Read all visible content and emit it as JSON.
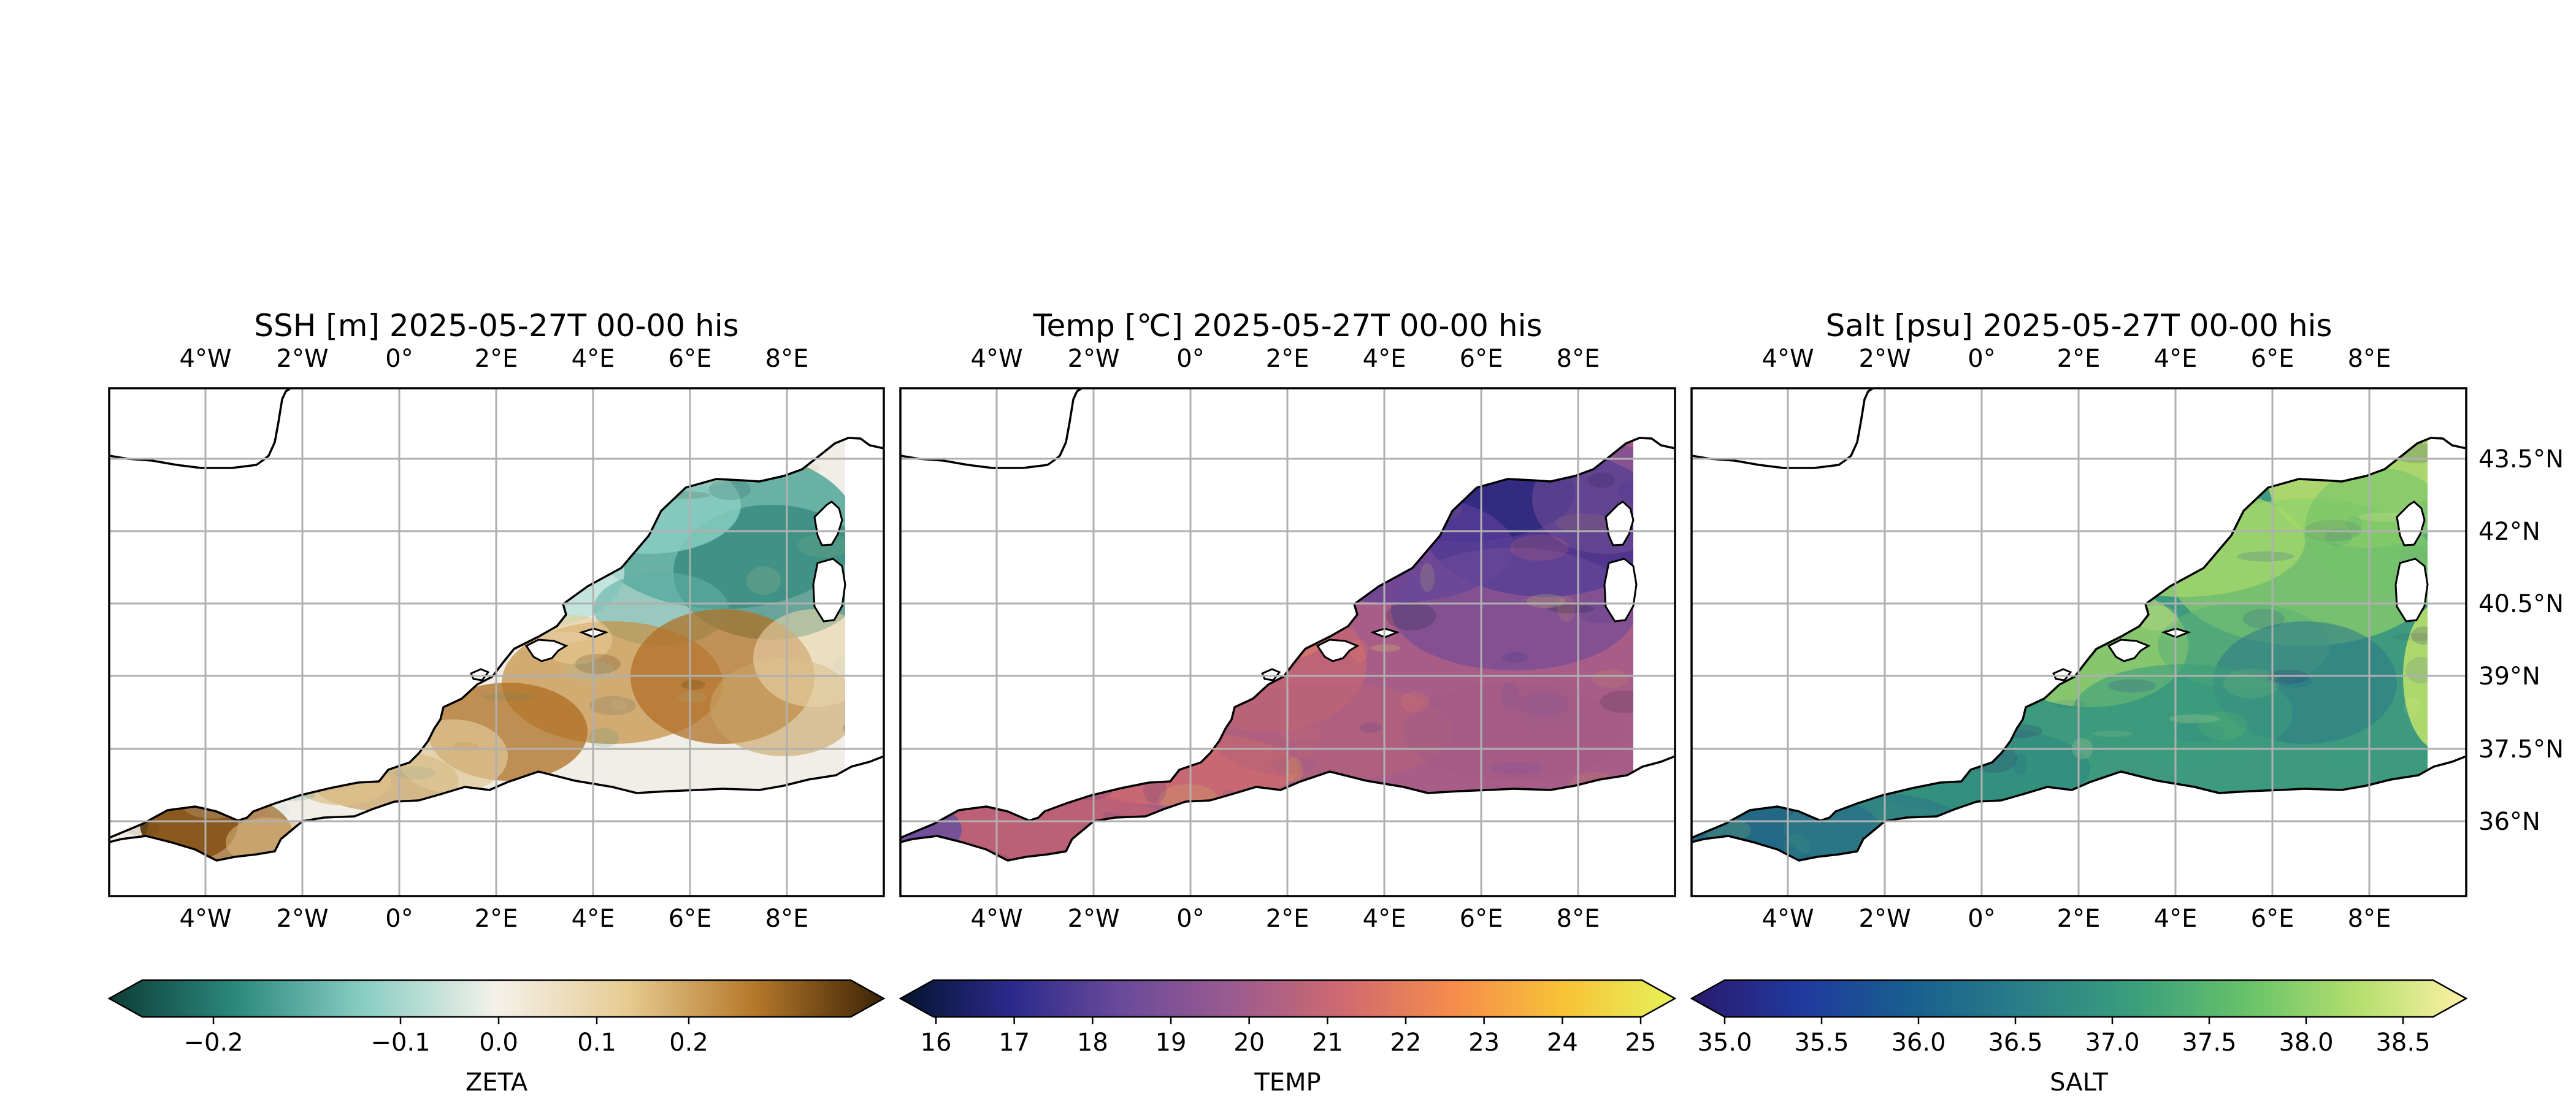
{
  "panels": [
    {
      "id": "ssh",
      "title": "SSH [m] 2025-05-27T 00-00 his",
      "cmap": "balance",
      "colorbar": {
        "label": "ZETA",
        "ticks": [
          "−0.2",
          "−0.1",
          "0.0",
          "0.1",
          "0.2"
        ],
        "stops": [
          "#0d3d36",
          "#2c8a7f",
          "#8ccfc4",
          "#f4f1ea",
          "#e7cc92",
          "#b5782a",
          "#3c2305"
        ]
      }
    },
    {
      "id": "temp",
      "title": "Temp [℃] 2025-05-27T 00-00 his",
      "cmap": "thermal",
      "colorbar": {
        "label": "TEMP",
        "ticks": [
          "16",
          "17",
          "18",
          "19",
          "20",
          "21",
          "22",
          "23",
          "24",
          "25"
        ],
        "stops": [
          "#04142d",
          "#2b2a8c",
          "#6a4a9a",
          "#9b5b8f",
          "#cf6a70",
          "#f68c4b",
          "#f7c337",
          "#e6f25a"
        ]
      }
    },
    {
      "id": "salt",
      "title": "Salt [psu] 2025-05-27T 00-00 his",
      "cmap": "haline",
      "colorbar": {
        "label": "SALT",
        "ticks": [
          "35.0",
          "35.5",
          "36.0",
          "36.5",
          "37.0",
          "37.5",
          "38.0",
          "38.5"
        ],
        "stops": [
          "#2a1a6e",
          "#203a9e",
          "#18608e",
          "#2a7f88",
          "#3a9e7c",
          "#66c26a",
          "#b3de6d",
          "#fdf1a4"
        ]
      }
    }
  ],
  "lon_labels": [
    "4°W",
    "2°W",
    "0°",
    "2°E",
    "4°E",
    "6°E",
    "8°E"
  ],
  "lat_labels": [
    "43.5°N",
    "42°N",
    "40.5°N",
    "39°N",
    "37.5°N",
    "36°N"
  ],
  "colors": {
    "grid": "#b0b0b0",
    "coast": "#000000",
    "land": "#ffffff"
  }
}
